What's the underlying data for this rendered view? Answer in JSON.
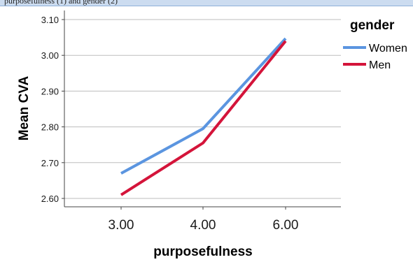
{
  "header_text": "purposefulness (1) and gender (2)",
  "chart_data": {
    "type": "line",
    "categories": [
      "3.00",
      "4.00",
      "6.00"
    ],
    "series": [
      {
        "name": "Women",
        "values": [
          2.67,
          2.795,
          3.047
        ],
        "color": "#5b95e0"
      },
      {
        "name": "Men",
        "values": [
          2.61,
          2.755,
          3.04
        ],
        "color": "#d4143a"
      }
    ],
    "xlabel": "purposefulness",
    "ylabel": "Mean CVA",
    "ylim": [
      2.58,
      3.115
    ],
    "yticks": [
      "2.60",
      "2.70",
      "2.80",
      "2.90",
      "3.00",
      "3.10"
    ],
    "legend_title": "gender",
    "legend_position": "right",
    "grid": true
  }
}
